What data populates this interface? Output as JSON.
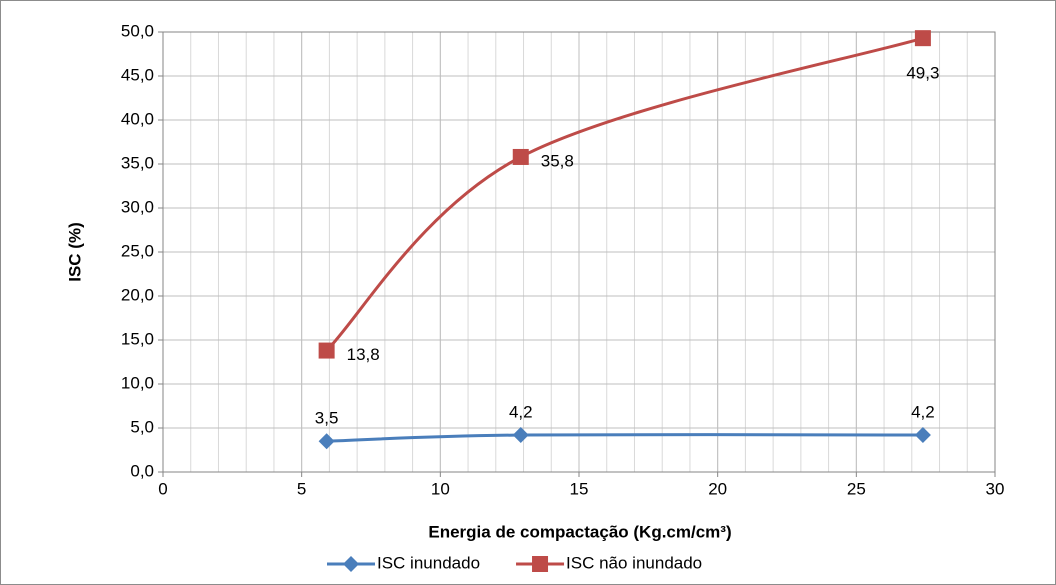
{
  "chart_data": {
    "type": "scatter_smooth",
    "x_label": "Energia de compactação (Kg.cm/cm³)",
    "y_label": "ISC (%)",
    "xlim": [
      0,
      30
    ],
    "xticks": [
      0,
      5,
      10,
      15,
      20,
      25,
      30
    ],
    "ylim": [
      0,
      50
    ],
    "yticks": [
      {
        "value": 0,
        "label": "0,0"
      },
      {
        "value": 5,
        "label": "5,0"
      },
      {
        "value": 10,
        "label": "10,0"
      },
      {
        "value": 15,
        "label": "15,0"
      },
      {
        "value": 20,
        "label": "20,0"
      },
      {
        "value": 25,
        "label": "25,0"
      },
      {
        "value": 30,
        "label": "30,0"
      },
      {
        "value": 35,
        "label": "35,0"
      },
      {
        "value": 40,
        "label": "40,0"
      },
      {
        "value": 45,
        "label": "45,0"
      },
      {
        "value": 50,
        "label": "50,0"
      }
    ],
    "grid": true,
    "minor_x_grid_step": 1,
    "legend": "bottom",
    "series": [
      {
        "name": "ISC inundado",
        "color": "#4a7ebb",
        "marker": "diamond",
        "x": [
          5.9,
          12.9,
          27.4
        ],
        "values": [
          3.5,
          4.2,
          4.2
        ],
        "value_labels": [
          "3,5",
          "4,2",
          "4,2"
        ]
      },
      {
        "name": "ISC não inundado",
        "color": "#be4b48",
        "marker": "square",
        "x": [
          5.9,
          12.9,
          27.4
        ],
        "values": [
          13.8,
          35.8,
          49.3
        ],
        "value_labels": [
          "13,8",
          "35,8",
          "49,3"
        ]
      }
    ]
  }
}
